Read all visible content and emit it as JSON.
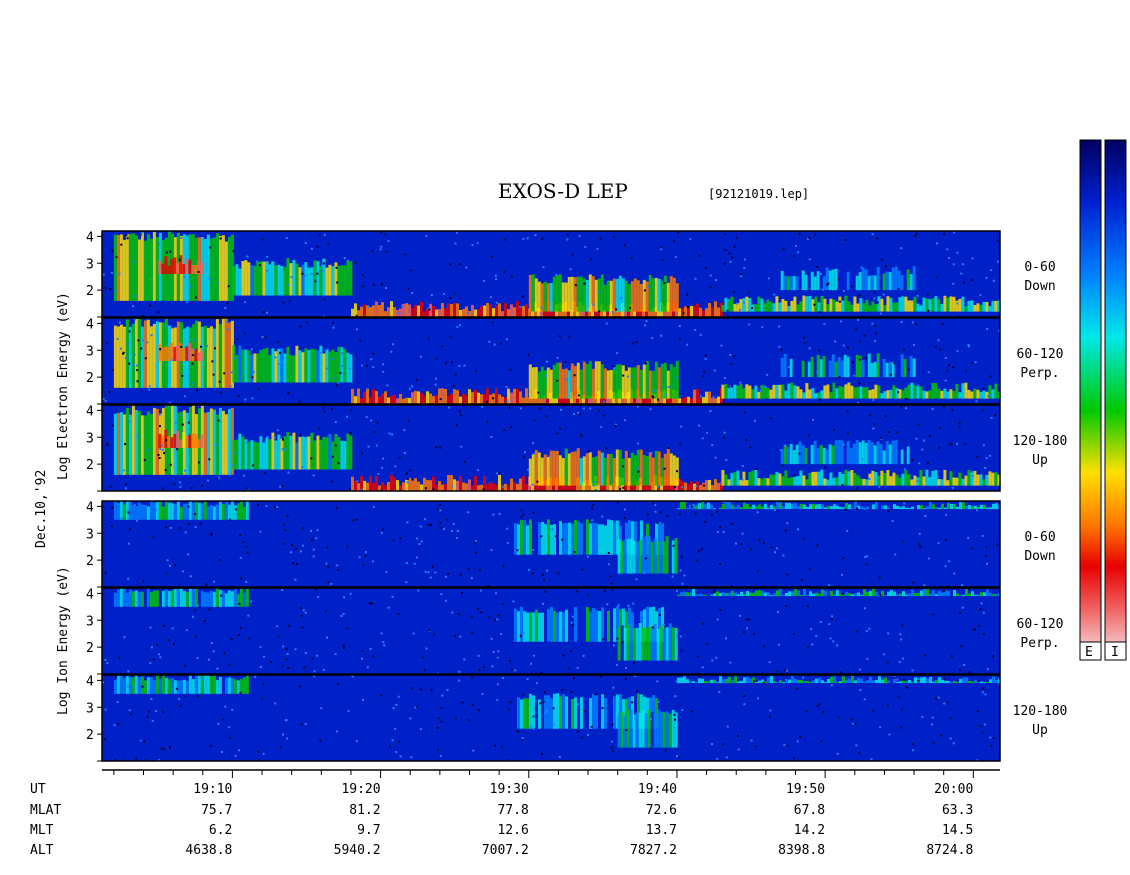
{
  "chart_data": {
    "type": "heatmap",
    "title": "EXOS-D LEP",
    "file_label": "[92121019.lep]",
    "date_label": "Dec.10,'92",
    "electron_ylabel": "Log Electron Energy (eV)",
    "ion_ylabel": "Log Ion Energy (eV)",
    "ylim": [
      1,
      4.2
    ],
    "yticks": [
      "4",
      "3",
      "2"
    ],
    "x_range_minutes": [
      19.02,
      20.03
    ],
    "colorbar_labels": [
      "E",
      "I"
    ],
    "panels": [
      {
        "species": "electron",
        "label1": "0-60",
        "label2": "Down"
      },
      {
        "species": "electron",
        "label1": "60-120",
        "label2": "Perp."
      },
      {
        "species": "electron",
        "label1": "120-180",
        "label2": "Up"
      },
      {
        "species": "ion",
        "label1": "0-60",
        "label2": "Down"
      },
      {
        "species": "ion",
        "label1": "60-120",
        "label2": "Perp."
      },
      {
        "species": "ion",
        "label1": "120-180",
        "label2": "Up"
      }
    ],
    "electron_features": [
      {
        "t0": "19:02",
        "t1": "19:10",
        "emin": 1.6,
        "emax": 4.0,
        "intensity": 0.55
      },
      {
        "t0": "19:05",
        "t1": "19:08",
        "emin": 2.6,
        "emax": 3.1,
        "intensity": 0.85
      },
      {
        "t0": "19:10",
        "t1": "19:18",
        "emin": 1.8,
        "emax": 3.0,
        "intensity": 0.45
      },
      {
        "t0": "19:18",
        "t1": "19:43",
        "emin": 1.0,
        "emax": 1.4,
        "intensity": 0.8
      },
      {
        "t0": "19:30",
        "t1": "19:40",
        "emin": 1.2,
        "emax": 2.4,
        "intensity": 0.6
      },
      {
        "t0": "19:43",
        "t1": "20:03",
        "emin": 1.2,
        "emax": 1.6,
        "intensity": 0.5
      },
      {
        "t0": "19:47",
        "t1": "19:56",
        "emin": 2.0,
        "emax": 2.7,
        "intensity": 0.3
      }
    ],
    "ion_features": [
      {
        "t0": "19:02",
        "t1": "19:11",
        "emin": 3.5,
        "emax": 4.1,
        "intensity": 0.35
      },
      {
        "t0": "19:29",
        "t1": "19:39",
        "emin": 2.2,
        "emax": 3.4,
        "intensity": 0.3
      },
      {
        "t0": "19:36",
        "t1": "19:40",
        "emin": 1.5,
        "emax": 2.8,
        "intensity": 0.35
      },
      {
        "t0": "19:40",
        "t1": "20:03",
        "emin": 3.9,
        "emax": 4.05,
        "intensity": 0.35
      }
    ]
  },
  "axis_table": {
    "row_labels": [
      "UT",
      "MLAT",
      "MLT",
      "ALT"
    ],
    "ticks": [
      "19:10",
      "19:20",
      "19:30",
      "19:40",
      "19:50",
      "20:00"
    ],
    "ut": [
      "19:10",
      "19:20",
      "19:30",
      "19:40",
      "19:50",
      "20:00"
    ],
    "mlat": [
      "75.7",
      "81.2",
      "77.8",
      "72.6",
      "67.8",
      "63.3"
    ],
    "mlt": [
      "6.2",
      "9.7",
      "12.6",
      "13.7",
      "14.2",
      "14.5"
    ],
    "alt": [
      "4638.8",
      "5940.2",
      "7007.2",
      "7827.2",
      "8398.8",
      "8724.8"
    ]
  },
  "colors": {
    "background_deep": "#0020c8",
    "colormap": [
      "#f8e8ec",
      "#f06060",
      "#e80000",
      "#ff7800",
      "#ffe000",
      "#00c800",
      "#00e8e8",
      "#0080ff",
      "#0020d0",
      "#000060"
    ]
  }
}
